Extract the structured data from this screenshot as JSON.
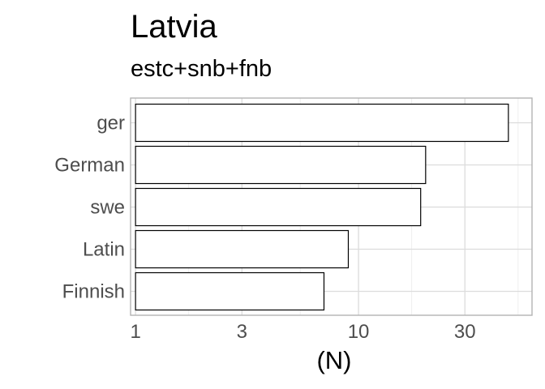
{
  "chart_data": {
    "type": "bar",
    "orientation": "horizontal",
    "title": "Latvia",
    "subtitle": "estc+snb+fnb",
    "xlabel": "(N)",
    "ylabel": "",
    "x_scale": "log10",
    "xlim": [
      0.95,
      60
    ],
    "x_ticks": [
      1,
      3,
      10,
      30
    ],
    "x_tick_labels": [
      "1",
      "3",
      "10",
      "30"
    ],
    "categories": [
      "ger",
      "German",
      "swe",
      "Latin",
      "Finnish"
    ],
    "values": [
      47,
      20,
      19,
      9,
      7
    ],
    "bar_fill": "#ffffff",
    "bar_stroke": "#000000",
    "grid": true,
    "grid_color": "#dcdcdc",
    "panel_border_color": "#b3b3b3"
  }
}
